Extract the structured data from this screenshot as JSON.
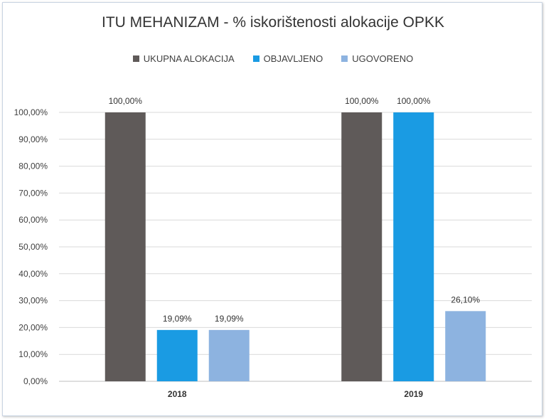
{
  "chart_data": {
    "type": "bar",
    "title": "ITU MEHANIZAM - % iskorištenosti alokacije OPKK",
    "categories": [
      "2018",
      "2019"
    ],
    "series": [
      {
        "name": "UKUPNA ALOKACIJA",
        "color": "#5f5a59",
        "values": [
          100.0,
          100.0
        ],
        "labels": [
          "100,00%",
          "100,00%"
        ]
      },
      {
        "name": "OBJAVLJENO",
        "color": "#1a9be3",
        "values": [
          19.09,
          100.0
        ],
        "labels": [
          "19,09%",
          "100,00%"
        ]
      },
      {
        "name": "UGOVORENO",
        "color": "#8db3e0",
        "values": [
          19.09,
          26.1
        ],
        "labels": [
          "19,09%",
          "26,10%"
        ]
      }
    ],
    "y_ticks": [
      "0,00%",
      "10,00%",
      "20,00%",
      "30,00%",
      "40,00%",
      "50,00%",
      "60,00%",
      "70,00%",
      "80,00%",
      "90,00%",
      "100,00%"
    ],
    "ylim": [
      0,
      100
    ],
    "grid": true,
    "legend_position": "top",
    "xlabel": "",
    "ylabel": ""
  }
}
